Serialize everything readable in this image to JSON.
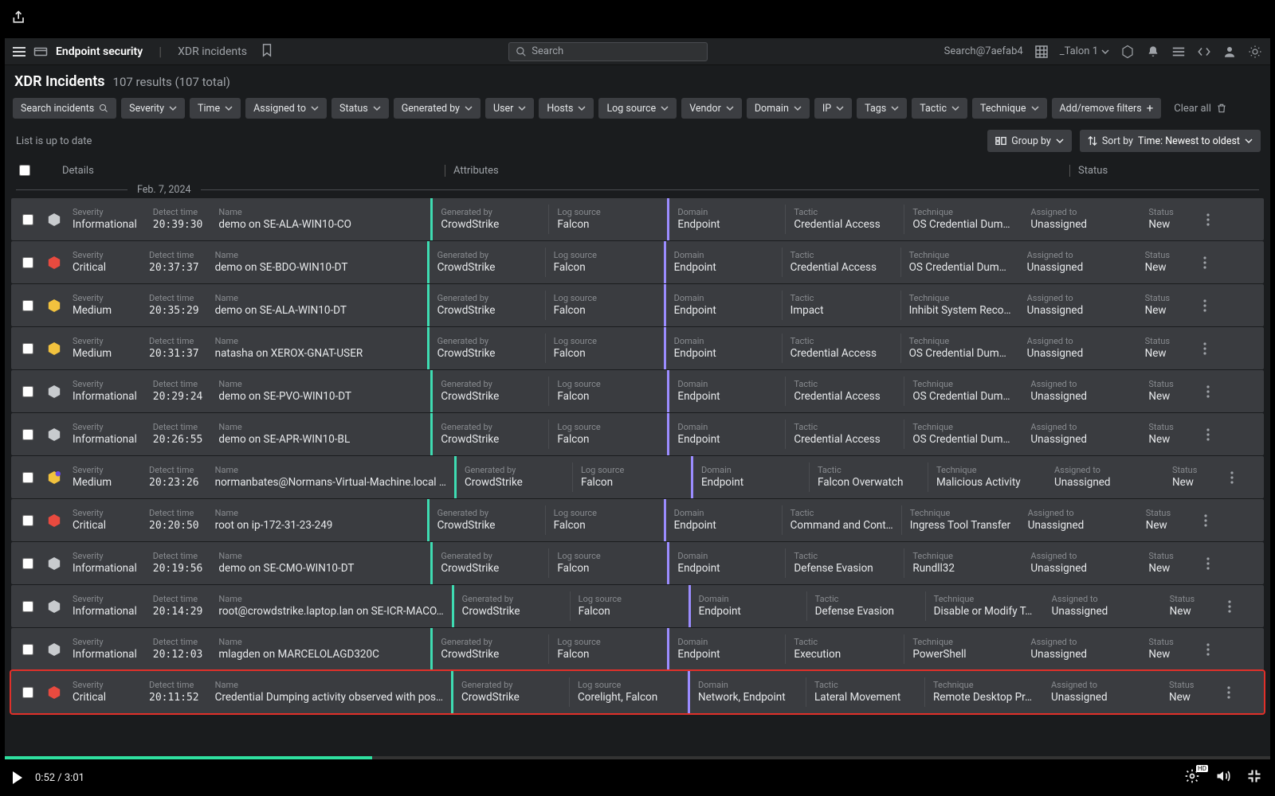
{
  "header": {
    "crumb_main": "Endpoint security",
    "crumb_sub": "XDR incidents",
    "search_placeholder": "Search",
    "account": "Search@7aefab4",
    "user": "_Talon 1"
  },
  "page": {
    "title": "XDR Incidents",
    "subtitle": "107 results (107 total)"
  },
  "filters": {
    "search": "Search incidents",
    "items": [
      "Severity",
      "Time",
      "Assigned to",
      "Status",
      "Generated by",
      "User",
      "Hosts",
      "Log source",
      "Vendor",
      "Domain",
      "IP",
      "Tags",
      "Tactic",
      "Technique"
    ],
    "add": "Add/remove filters",
    "clear": "Clear all"
  },
  "toolbar": {
    "uptodate": "List is up to date",
    "groupby": "Group by",
    "sort_prefix": "Sort by ",
    "sort_value": "Time: Newest to oldest"
  },
  "columns": {
    "details": "Details",
    "attributes": "Attributes",
    "status": "Status"
  },
  "date_divider": "Feb. 7, 2024",
  "labels": {
    "severity": "Severity",
    "detect": "Detect time",
    "name": "Name",
    "gen": "Generated by",
    "log": "Log source",
    "dom": "Domain",
    "tac": "Tactic",
    "tec": "Technique",
    "ass": "Assigned to",
    "sta": "Status"
  },
  "sev_colors": {
    "Informational": "#c8cbce",
    "Medium": "#f2c23e",
    "Critical": "#e84a3f"
  },
  "rows": [
    {
      "sev": "Informational",
      "time": "20:39:30",
      "name": "demo on SE-ALA-WIN10-CO",
      "gen": "CrowdStrike",
      "log": "Falcon",
      "dom": "Endpoint",
      "tac": "Credential Access",
      "tec": "OS Credential Dum…",
      "ass": "Unassigned",
      "sta": "New"
    },
    {
      "sev": "Critical",
      "time": "20:37:37",
      "name": "demo on SE-BDO-WIN10-DT",
      "gen": "CrowdStrike",
      "log": "Falcon",
      "dom": "Endpoint",
      "tac": "Credential Access",
      "tec": "OS Credential Dum…",
      "ass": "Unassigned",
      "sta": "New"
    },
    {
      "sev": "Medium",
      "time": "20:35:29",
      "name": "demo on SE-ALA-WIN10-DT",
      "gen": "CrowdStrike",
      "log": "Falcon",
      "dom": "Endpoint",
      "tac": "Impact",
      "tec": "Inhibit System Reco…",
      "ass": "Unassigned",
      "sta": "New"
    },
    {
      "sev": "Medium",
      "time": "20:31:37",
      "name": "natasha on XEROX-GNAT-USER",
      "gen": "CrowdStrike",
      "log": "Falcon",
      "dom": "Endpoint",
      "tac": "Credential Access",
      "tec": "OS Credential Dum…",
      "ass": "Unassigned",
      "sta": "New"
    },
    {
      "sev": "Informational",
      "time": "20:29:24",
      "name": "demo on SE-PVO-WIN10-DT",
      "gen": "CrowdStrike",
      "log": "Falcon",
      "dom": "Endpoint",
      "tac": "Credential Access",
      "tec": "OS Credential Dum…",
      "ass": "Unassigned",
      "sta": "New"
    },
    {
      "sev": "Informational",
      "time": "20:26:55",
      "name": "demo on SE-APR-WIN10-BL",
      "gen": "CrowdStrike",
      "log": "Falcon",
      "dom": "Endpoint",
      "tac": "Credential Access",
      "tec": "OS Credential Dum…",
      "ass": "Unassigned",
      "sta": "New"
    },
    {
      "sev": "Medium",
      "time": "20:23:26",
      "name": "normanbates@Normans-Virtual-Machine.local …",
      "gen": "CrowdStrike",
      "log": "Falcon",
      "dom": "Endpoint",
      "tac": "Falcon Overwatch",
      "tec": "Malicious Activity",
      "ass": "Unassigned",
      "sta": "New",
      "badge": true
    },
    {
      "sev": "Critical",
      "time": "20:20:50",
      "name": "root on ip-172-31-23-249",
      "gen": "CrowdStrike",
      "log": "Falcon",
      "dom": "Endpoint",
      "tac": "Command and Cont…",
      "tec": "Ingress Tool Transfer",
      "ass": "Unassigned",
      "sta": "New"
    },
    {
      "sev": "Informational",
      "time": "20:19:56",
      "name": "demo on SE-CMO-WIN10-DT",
      "gen": "CrowdStrike",
      "log": "Falcon",
      "dom": "Endpoint",
      "tac": "Defense Evasion",
      "tec": "Rundll32",
      "ass": "Unassigned",
      "sta": "New"
    },
    {
      "sev": "Informational",
      "time": "20:14:29",
      "name": "root@crowdstrike.laptop.lan on SE-ICR-MACO…",
      "gen": "CrowdStrike",
      "log": "Falcon",
      "dom": "Endpoint",
      "tac": "Defense Evasion",
      "tec": "Disable or Modify T…",
      "ass": "Unassigned",
      "sta": "New"
    },
    {
      "sev": "Informational",
      "time": "20:12:03",
      "name": "mlagden on MARCELOLAGD320C",
      "gen": "CrowdStrike",
      "log": "Falcon",
      "dom": "Endpoint",
      "tac": "Execution",
      "tec": "PowerShell",
      "ass": "Unassigned",
      "sta": "New"
    },
    {
      "sev": "Critical",
      "time": "20:11:52",
      "name": "Credential Dumping activity observed with pos…",
      "gen": "CrowdStrike",
      "log": "Corelight, Falcon",
      "dom": "Network, Endpoint",
      "tac": "Lateral Movement",
      "tec": "Remote Desktop Pr…",
      "ass": "Unassigned",
      "sta": "New",
      "hl": true
    }
  ],
  "video": {
    "time": "0:52 / 3:01",
    "progress_pct": 29,
    "hd": "HD"
  }
}
